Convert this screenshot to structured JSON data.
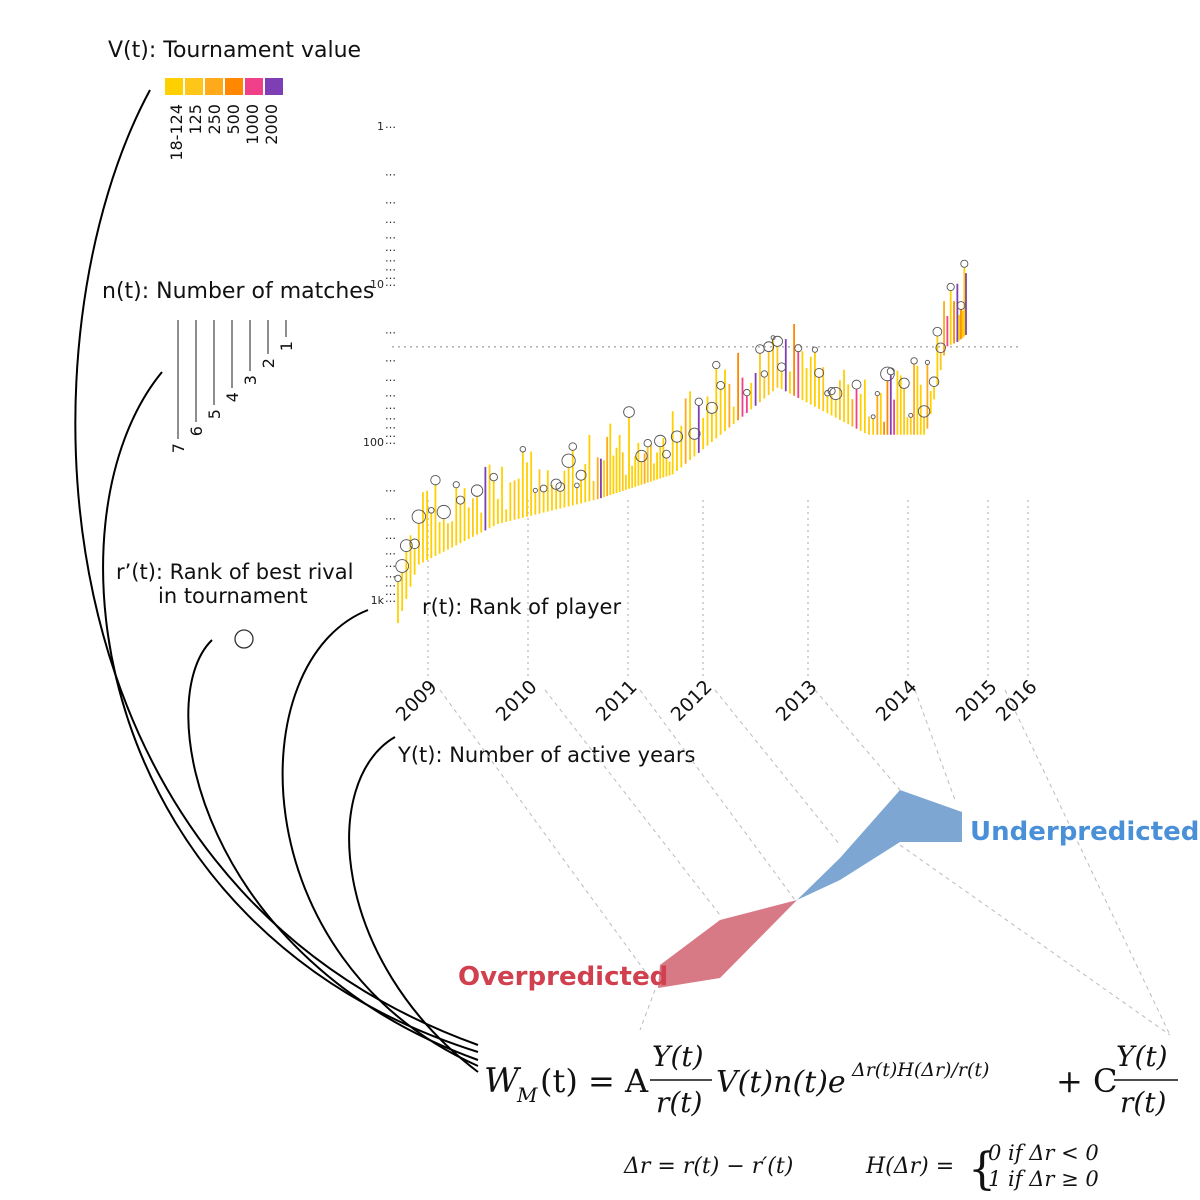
{
  "legend": {
    "value_title": "V(t): Tournament value",
    "value_colors": [
      "#FFD000",
      "#FFC61A",
      "#FFAA1A",
      "#FF8800",
      "#F0408A",
      "#7E3FB5"
    ],
    "value_labels": [
      "18-124",
      "125",
      "250",
      "500",
      "1000",
      "2000"
    ],
    "matches_title": "n(t): Number of matches",
    "matches_labels": [
      "7",
      "6",
      "5",
      "4",
      "3",
      "2",
      "1"
    ],
    "rival_title_line1": "r’(t): Rank of best rival",
    "rival_title_line2": "in tournament",
    "rank_title": "r(t): Rank of player",
    "years_title": "Y(t): Number of active years"
  },
  "chart_data": {
    "type": "bar",
    "title": "",
    "yscale": "log",
    "ylim": [
      1,
      1500
    ],
    "y_reversed": true,
    "y_tick_labels": [
      "1",
      "10",
      "100",
      "1k"
    ],
    "x_tick_labels": [
      "2009",
      "2010",
      "2011",
      "2012",
      "2013",
      "2014",
      "2015",
      "2016"
    ],
    "series": [
      {
        "name": "Rank of player r(t) (start rank to end rank per tournament, in years since 2009)",
        "rank_path": [
          [
            0.0,
            1400
          ],
          [
            0.2,
            600
          ],
          [
            1.0,
            330
          ],
          [
            2.0,
            230
          ],
          [
            3.0,
            160
          ],
          [
            4.0,
            45
          ],
          [
            4.9,
            90
          ],
          [
            5.6,
            90
          ],
          [
            5.85,
            25
          ],
          [
            6.2,
            21
          ]
        ]
      }
    ],
    "annotations": {
      "underpredicted": "Underpredicted",
      "overpredicted": "Overpredicted"
    }
  },
  "formula": {
    "lhs": "W",
    "lhs_sub": "M",
    "lhs_arg": "(t) = A",
    "frac_num": "Y(t)",
    "frac_den": "r(t)",
    "middle": "V(t)n(t)e",
    "exponent": "Δr(t)H(Δr)/r(t)",
    "plus": "+ C",
    "delta_def": "Δr = r(t) − r′(t)",
    "heaviside_lhs": "H(Δr) =",
    "case0": "0 if Δr < 0",
    "case1": "1 if Δr ≥ 0"
  }
}
